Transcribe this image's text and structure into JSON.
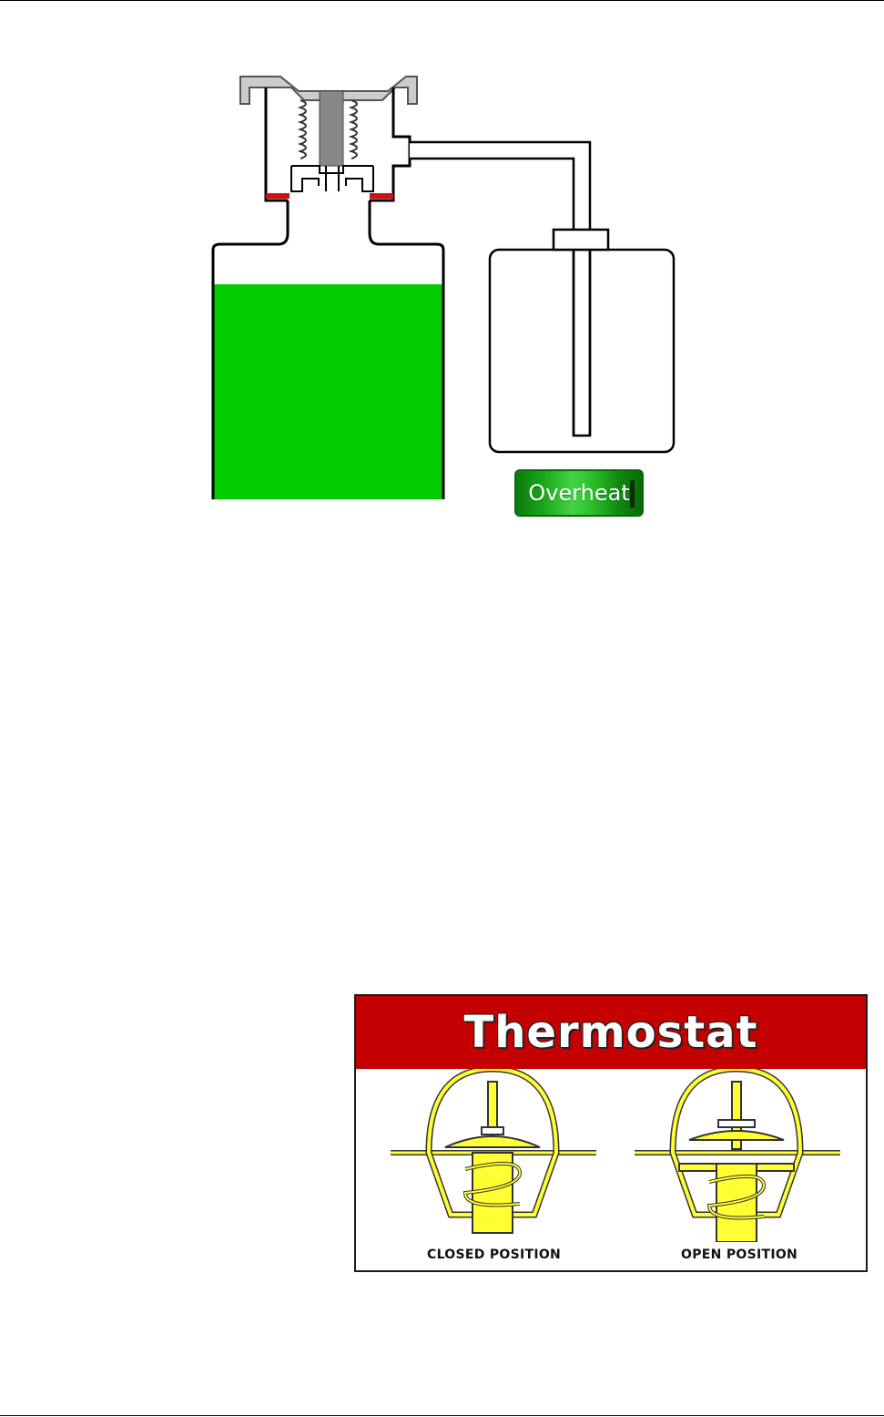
{
  "colors": {
    "coolant": "#00cc00",
    "seal": "#cc1111",
    "cap_body": "#cccccc",
    "thermostat_header": "#c40000",
    "thermostat_metal": "#ffff33"
  },
  "cap_diagram": {
    "overheat_label": "Overheat"
  },
  "thermostat": {
    "title": "Thermostat",
    "closed_label": "CLOSED POSITION",
    "open_label": "OPEN POSITION"
  }
}
